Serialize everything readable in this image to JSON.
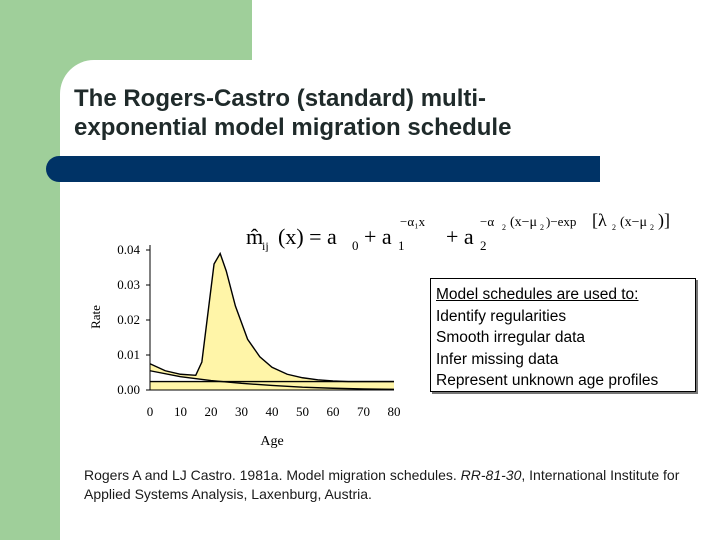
{
  "slide": {
    "title_line1": "The Rogers-Castro (standard) multi-",
    "title_line2": "exponential model migration schedule",
    "accent_colors": {
      "background_block": "#9fcf9a",
      "rule_bar": "#003366",
      "curve_fill": "#fff5a8"
    }
  },
  "formula": {
    "lhs": "m̂",
    "lhs_sub": "ij",
    "lhs_arg": "(x) = a",
    "a0_sub": "0",
    "plus1": "+ a",
    "a1_sub": "1",
    "exp1": "−α₁x",
    "plus2": "+ a",
    "a2_sub": "2",
    "exp2_a": "−α",
    "exp2_a_sub": "2",
    "exp2_b": "(x−μ",
    "exp2_b_sub": "2",
    "exp2_c": ")−exp",
    "exp2_d": "[λ",
    "exp2_d_sub": "2",
    "exp2_e": "(x−μ",
    "exp2_e_sub": "2",
    "exp2_f": ")]"
  },
  "chart_data": {
    "type": "area",
    "xlabel": "Age",
    "ylabel": "Rate",
    "xlim": [
      0,
      80
    ],
    "ylim": [
      0,
      0.04
    ],
    "x_ticks": [
      "0",
      "10",
      "20",
      "30",
      "40",
      "50",
      "60",
      "70",
      "80"
    ],
    "y_ticks": [
      "0.00",
      "0.01",
      "0.02",
      "0.03",
      "0.04"
    ],
    "grid": false,
    "series": [
      {
        "x": [
          0,
          5,
          10,
          15,
          17,
          19,
          21,
          23,
          25,
          28,
          32,
          36,
          40,
          45,
          50,
          55,
          60,
          65,
          70,
          75,
          80
        ],
        "y": [
          0.0075,
          0.0055,
          0.0045,
          0.0042,
          0.008,
          0.022,
          0.036,
          0.039,
          0.034,
          0.024,
          0.0145,
          0.0095,
          0.0065,
          0.0045,
          0.0035,
          0.0029,
          0.0026,
          0.0024,
          0.0024,
          0.0024,
          0.0024
        ]
      },
      {
        "x": [
          0,
          10,
          20,
          30,
          40,
          50,
          60,
          70,
          80
        ],
        "y": [
          0.0055,
          0.0038,
          0.0027,
          0.0019,
          0.0013,
          0.0008,
          0.0005,
          0.0003,
          0.0002
        ]
      },
      {
        "x": [
          0,
          80
        ],
        "y": [
          0.0024,
          0.0024
        ]
      }
    ]
  },
  "note": {
    "heading": "Model schedules are used to:",
    "items": [
      "Identify regularities",
      "Smooth irregular data",
      "Infer missing data",
      "Represent unknown age profiles"
    ]
  },
  "citation": {
    "prefix": "Rogers A and LJ Castro. 1981a. Model migration schedules. ",
    "report": "RR-81-30",
    "suffix": ", International Institute for Applied Systems Analysis, Laxenburg, Austria."
  }
}
